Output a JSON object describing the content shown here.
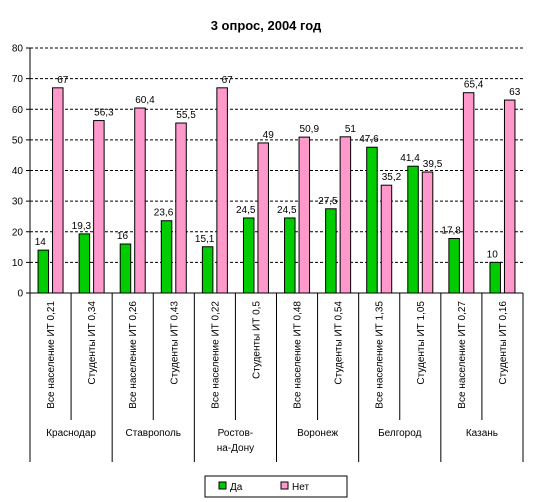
{
  "chart_data": {
    "type": "bar",
    "title": "3 опрос, 2004 год",
    "xlabel": "",
    "ylabel": "",
    "ylim": [
      0,
      80
    ],
    "yticks": [
      0,
      10,
      20,
      30,
      40,
      50,
      60,
      70,
      80
    ],
    "grid": "horizontal dashed",
    "legend_position": "bottom",
    "categories": [
      "Все население ИТ 0,21",
      "Студенты ИТ 0,34",
      "Все население ИТ 0,26",
      "Студенты ИТ 0,43",
      "Все население ИТ 0,22",
      "Студенты ИТ 0,5",
      "Все население ИТ 0,48",
      "Студенты ИТ 0,54",
      "Все население ИТ 1,35",
      "Студенты ИТ 1,05",
      "Все население ИТ 0,27",
      "Студенты ИТ 0,16"
    ],
    "groups": [
      {
        "label": "Краснодар",
        "span": 2
      },
      {
        "label": "Ставрополь",
        "span": 2
      },
      {
        "label": "Ростов-на-Дону",
        "span": 2
      },
      {
        "label": "Воронеж",
        "span": 2
      },
      {
        "label": "Белгород",
        "span": 2
      },
      {
        "label": "Казань",
        "span": 2
      }
    ],
    "series": [
      {
        "name": "Да",
        "color": "#00cc00",
        "values": [
          14,
          19.3,
          16,
          23.6,
          15.1,
          24.5,
          24.5,
          27.5,
          47.6,
          41.4,
          17.8,
          10
        ],
        "labels": [
          "14",
          "19,3",
          "16",
          "23,6",
          "15,1",
          "24,5",
          "24,5",
          "27,5",
          "47,6",
          "41,4",
          "17,8",
          "10"
        ]
      },
      {
        "name": "Нет",
        "color": "#ff99cc",
        "values": [
          67,
          56.3,
          60.4,
          55.5,
          67,
          49,
          50.9,
          51,
          35.2,
          39.5,
          65.4,
          63
        ],
        "labels": [
          "67",
          "56,3",
          "60,4",
          "55,5",
          "67",
          "49",
          "50,9",
          "51",
          "35,2",
          "39,5",
          "65,4",
          "63"
        ]
      }
    ]
  }
}
